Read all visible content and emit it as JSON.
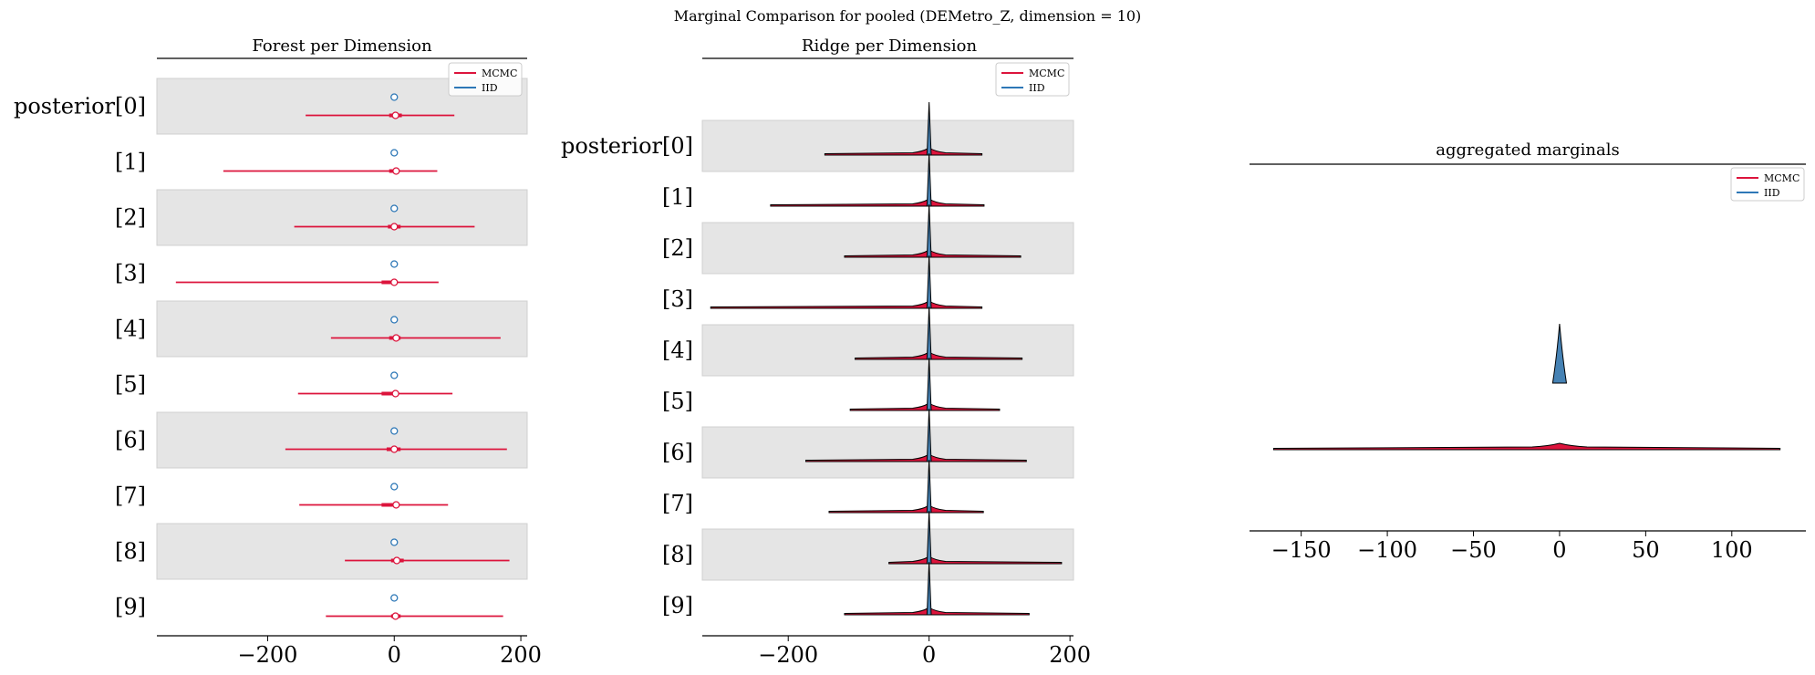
{
  "figure": {
    "suptitle": "Marginal Comparison for pooled (DEMetro_Z, dimension = 10)"
  },
  "colors": {
    "mcmc": "#dc143c",
    "iid": "#2e78b7",
    "band": "#e5e5e5",
    "iid_fill": "#4682b4"
  },
  "chart_data": [
    {
      "type": "forest",
      "title": "Forest per Dimension",
      "xlabel": "",
      "xlim": [
        -375,
        210
      ],
      "xticks": [
        -200,
        0,
        200
      ],
      "xtick_labels": [
        "−200",
        "0",
        "200"
      ],
      "categories": [
        "posterior[0]",
        "[1]",
        "[2]",
        "[3]",
        "[4]",
        "[5]",
        "[6]",
        "[7]",
        "[8]",
        "[9]"
      ],
      "grid": false,
      "legend": {
        "position": "top-right",
        "entries": [
          "MCMC",
          "IID"
        ]
      },
      "series": [
        {
          "name": "MCMC",
          "median": [
            2,
            3,
            0,
            0,
            3,
            2,
            0,
            3,
            4,
            2
          ],
          "hdi_50": [
            [
              -8,
              12
            ],
            [
              -8,
              8
            ],
            [
              -10,
              10
            ],
            [
              -20,
              5
            ],
            [
              -8,
              10
            ],
            [
              -20,
              5
            ],
            [
              -12,
              10
            ],
            [
              -20,
              5
            ],
            [
              -5,
              15
            ],
            [
              -5,
              10
            ]
          ],
          "hdi_94": [
            [
              -140,
              95
            ],
            [
              -270,
              68
            ],
            [
              -158,
              127
            ],
            [
              -345,
              70
            ],
            [
              -100,
              168
            ],
            [
              -152,
              92
            ],
            [
              -172,
              178
            ],
            [
              -150,
              85
            ],
            [
              -78,
              182
            ],
            [
              -108,
              172
            ]
          ]
        },
        {
          "name": "IID",
          "median": [
            0,
            0,
            0,
            0,
            0,
            0,
            0,
            0,
            0,
            0
          ],
          "hdi_94": [
            [
              -2,
              2
            ],
            [
              -2,
              2
            ],
            [
              -2,
              2
            ],
            [
              -2,
              2
            ],
            [
              -2,
              2
            ],
            [
              -2,
              2
            ],
            [
              -2,
              2
            ],
            [
              -2,
              2
            ],
            [
              -2,
              2
            ],
            [
              -2,
              2
            ]
          ]
        }
      ]
    },
    {
      "type": "ridge",
      "title": "Ridge per Dimension",
      "xlabel": "",
      "xlim": [
        -322,
        205
      ],
      "xticks": [
        -200,
        0,
        200
      ],
      "xtick_labels": [
        "−200",
        "0",
        "200"
      ],
      "categories": [
        "posterior[0]",
        "[1]",
        "[2]",
        "[3]",
        "[4]",
        "[5]",
        "[6]",
        "[7]",
        "[8]",
        "[9]"
      ],
      "grid": false,
      "legend": {
        "position": "top-right",
        "entries": [
          "MCMC",
          "IID"
        ]
      },
      "series": [
        {
          "name": "MCMC",
          "range": [
            [
              -148,
              75
            ],
            [
              -225,
              78
            ],
            [
              -120,
              130
            ],
            [
              -310,
              75
            ],
            [
              -105,
              132
            ],
            [
              -112,
              100
            ],
            [
              -175,
              138
            ],
            [
              -142,
              77
            ],
            [
              -57,
              188
            ],
            [
              -120,
              142
            ]
          ]
        },
        {
          "name": "IID",
          "range": [
            [
              -3,
              3
            ],
            [
              -3,
              3
            ],
            [
              -3,
              3
            ],
            [
              -3,
              3
            ],
            [
              -3,
              3
            ],
            [
              -3,
              3
            ],
            [
              -3,
              3
            ],
            [
              -3,
              3
            ],
            [
              -3,
              3
            ],
            [
              -3,
              3
            ]
          ]
        }
      ]
    },
    {
      "type": "area",
      "title": "aggregated marginals",
      "xlabel": "",
      "xlim": [
        -180,
        143
      ],
      "xticks": [
        -150,
        -100,
        -50,
        0,
        50,
        100
      ],
      "xtick_labels": [
        "−150",
        "−100",
        "−50",
        "0",
        "50",
        "100"
      ],
      "grid": false,
      "legend": {
        "position": "top-right",
        "entries": [
          "MCMC",
          "IID"
        ]
      },
      "series": [
        {
          "name": "MCMC",
          "range": [
            -166,
            128
          ],
          "peak": 0,
          "peak_rel_height": 0.06
        },
        {
          "name": "IID",
          "range": [
            -4,
            4
          ],
          "peak": 0,
          "peak_rel_height": 1.0
        }
      ]
    }
  ]
}
